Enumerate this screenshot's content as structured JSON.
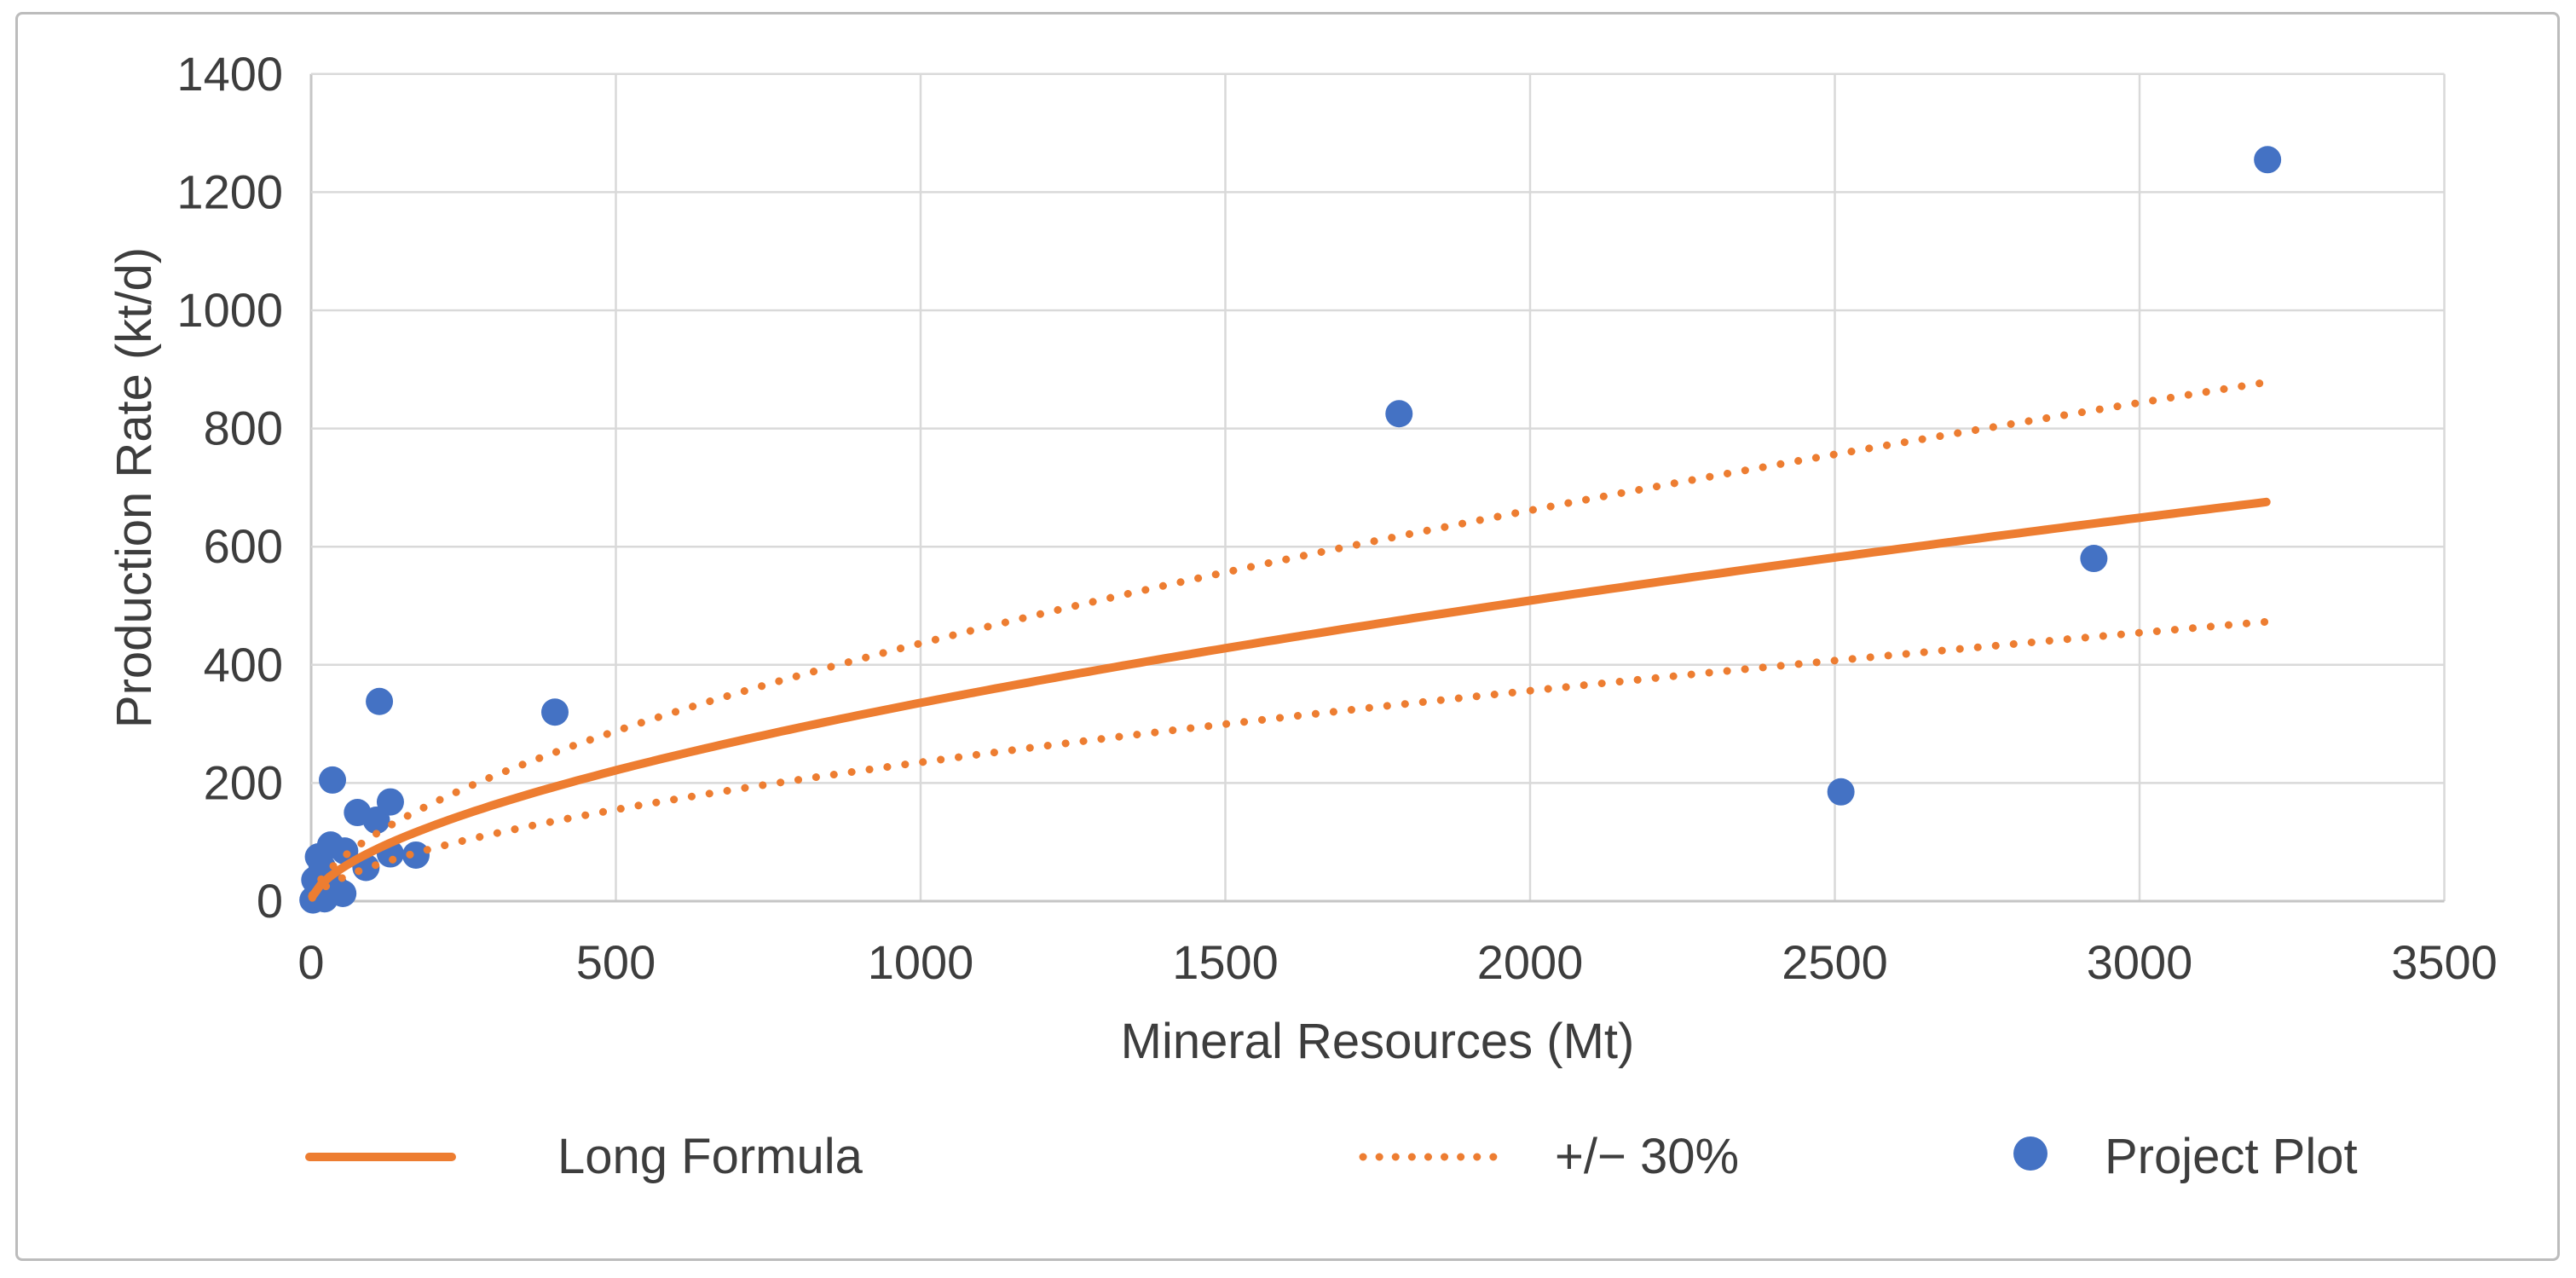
{
  "window": {
    "background": "#ffffff",
    "card_border_color": "#bcbcbc"
  },
  "chart_data": {
    "type": "scatter",
    "title": "",
    "xlabel": "Mineral Resources (Mt)",
    "ylabel": "Production Rate (kt/d)",
    "xlim": [
      0,
      3500
    ],
    "ylim": [
      0,
      1400
    ],
    "x_ticks": [
      0,
      500,
      1000,
      1500,
      2000,
      2500,
      3000,
      3500
    ],
    "y_ticks": [
      0,
      200,
      400,
      600,
      800,
      1000,
      1200,
      1400
    ],
    "grid": true,
    "grid_color": "#d9d9d9",
    "axis_line_color": "#c6c6c6",
    "axis_text_color": "#3d3d3d",
    "legend_position": "bottom",
    "series": [
      {
        "name": "Long Formula",
        "type": "line",
        "style": "solid",
        "color": "#ED7D31",
        "formula": "y = 5.32 * x^0.6",
        "power_a": 5.32,
        "power_b": 0.6,
        "x_start": 2,
        "x_end": 3220
      },
      {
        "name": "+/− 30%",
        "type": "band-lines",
        "style": "dotted",
        "color": "#ED7D31",
        "basis": "Long Formula",
        "factors": [
          1.3,
          0.7
        ]
      },
      {
        "name": "Project Plot",
        "type": "scatter",
        "color": "#4472C4",
        "marker": "circle",
        "points": [
          [
            3,
            2
          ],
          [
            8,
            8
          ],
          [
            14,
            14
          ],
          [
            18,
            20
          ],
          [
            22,
            4
          ],
          [
            38,
            25
          ],
          [
            52,
            13
          ],
          [
            6,
            36
          ],
          [
            18,
            58
          ],
          [
            12,
            75
          ],
          [
            32,
            95
          ],
          [
            55,
            85
          ],
          [
            90,
            57
          ],
          [
            130,
            80
          ],
          [
            172,
            78
          ],
          [
            76,
            150
          ],
          [
            107,
            137
          ],
          [
            130,
            168
          ],
          [
            35,
            205
          ],
          [
            112,
            338
          ],
          [
            400,
            320
          ],
          [
            1785,
            825
          ],
          [
            2510,
            185
          ],
          [
            2925,
            580
          ],
          [
            3210,
            1255
          ]
        ]
      }
    ]
  },
  "legend": {
    "items": [
      {
        "label": "Long Formula",
        "swatch": "solid-line"
      },
      {
        "label": "+/− 30%",
        "swatch": "dotted-line"
      },
      {
        "label": "Project Plot",
        "swatch": "circle"
      }
    ]
  }
}
